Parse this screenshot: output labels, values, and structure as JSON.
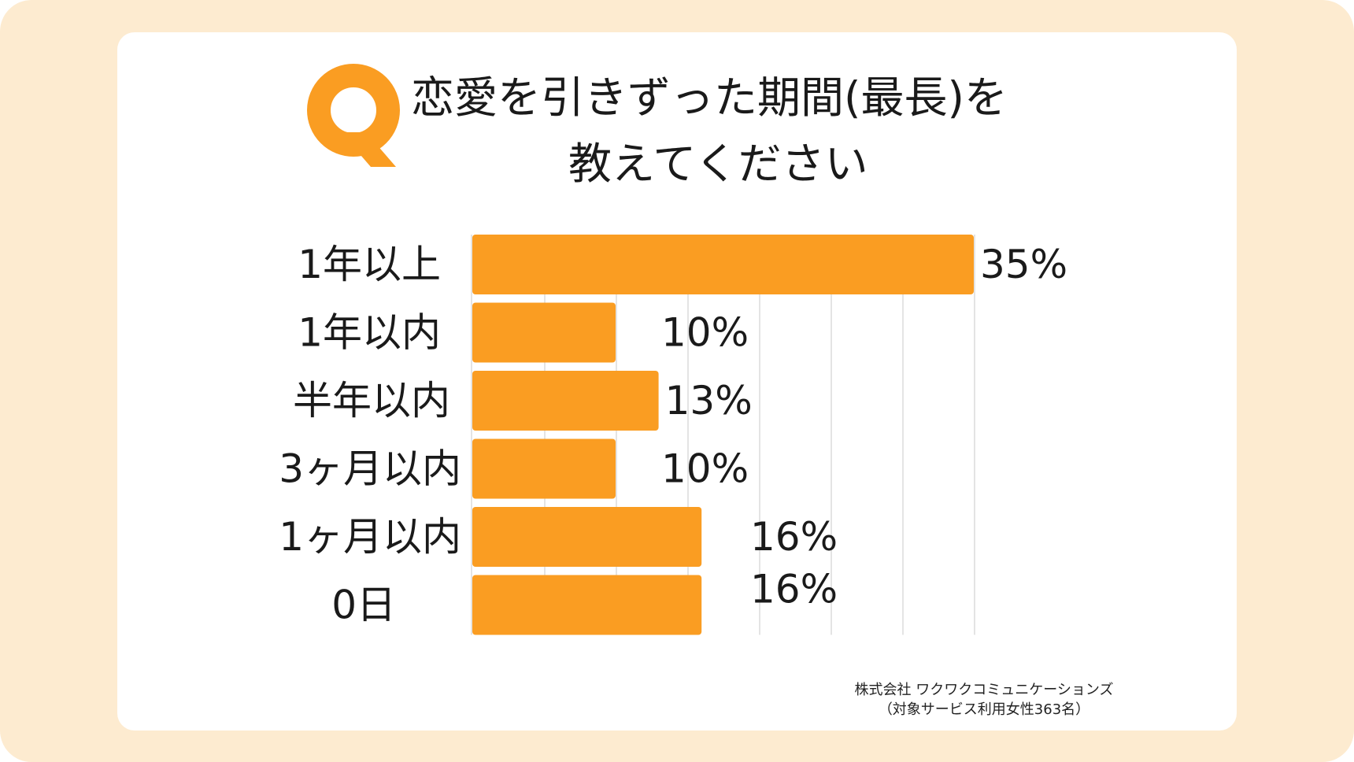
{
  "colors": {
    "background": "#fdebd0",
    "card": "#ffffff",
    "accent": "#fa9d22",
    "grid": "#dcdcdc",
    "text": "#1a1a1a"
  },
  "icons": {
    "question": "q-icon"
  },
  "title": {
    "line1": "恋愛を引きずった期間(最長)を",
    "line2": "教えてください"
  },
  "credit": {
    "company": "株式会社 ワクワクコミュニケーションズ",
    "note": "（対象サービス利用女性363名）"
  },
  "chart_data": {
    "type": "bar",
    "orientation": "horizontal",
    "title": "恋愛を引きずった期間(最長)を教えてください",
    "categories": [
      "1年以上",
      "1年以内",
      "半年以内",
      "3ヶ月以内",
      "1ヶ月以内",
      "0日"
    ],
    "values": [
      35,
      10,
      13,
      10,
      16,
      16
    ],
    "value_labels": [
      "35%",
      "10%",
      "13%",
      "10%",
      "16%",
      "16%"
    ],
    "unit": "%",
    "xlim": [
      0,
      35
    ],
    "gridlines": [
      5,
      10,
      15,
      20,
      25,
      30,
      35
    ],
    "legend": "none"
  }
}
